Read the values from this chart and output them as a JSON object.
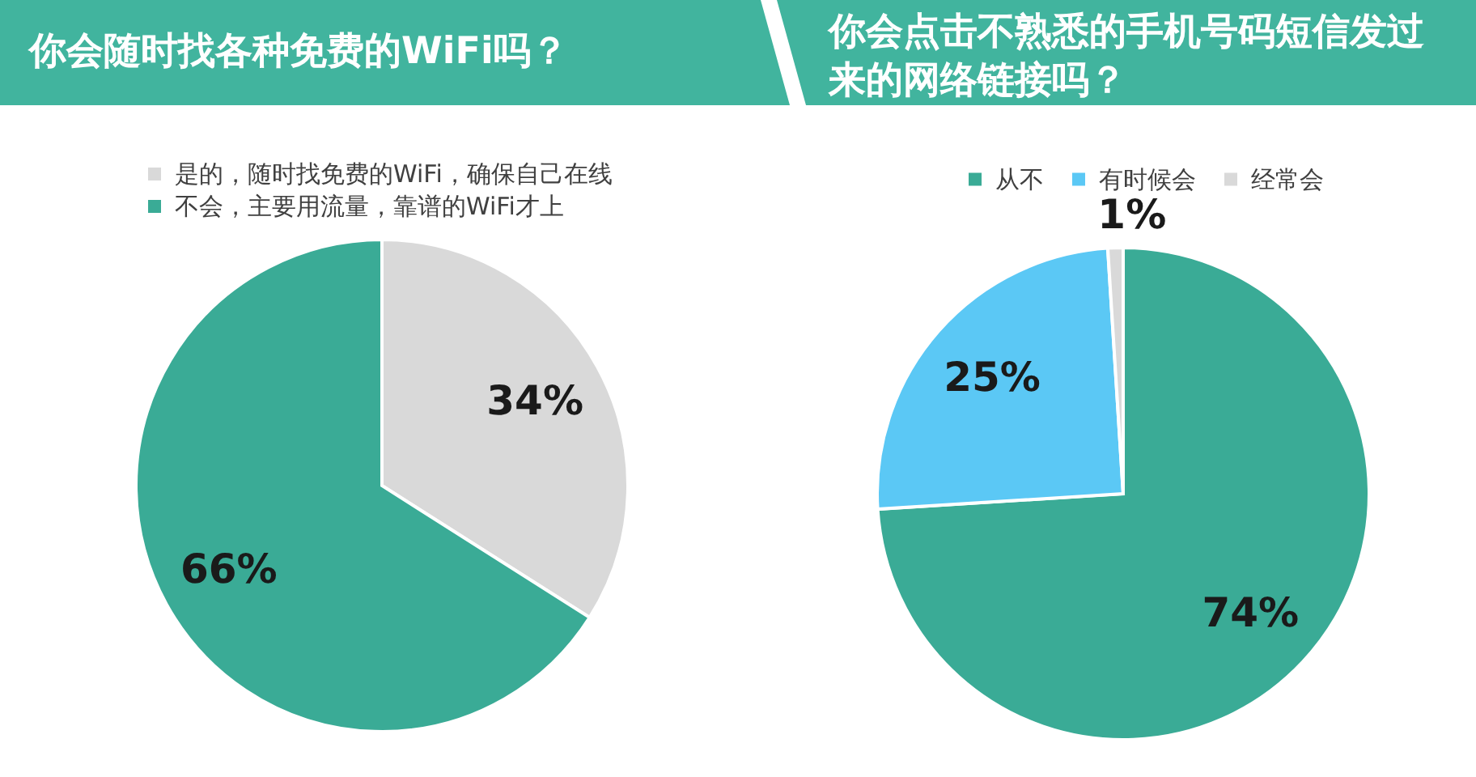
{
  "chart_data": [
    {
      "type": "pie",
      "title": "你会随时找各种免费的WiFi吗？",
      "categories": [
        "是的，随时找免费的WiFi，确保自己在线",
        "不会，主要用流量，靠谱的WiFi才上"
      ],
      "values": [
        34,
        66
      ],
      "colors": [
        "#d9d9d9",
        "#3aab96"
      ],
      "value_labels": [
        "34%",
        "66%"
      ],
      "legend": "top"
    },
    {
      "type": "pie",
      "title": "你会点击不熟悉的手机号码短信发过来的网络链接吗？",
      "categories": [
        "从不",
        "有时候会",
        "经常会"
      ],
      "values": [
        74,
        25,
        1
      ],
      "colors": [
        "#3aab96",
        "#5bc8f5",
        "#d9d9d9"
      ],
      "value_labels": [
        "74%",
        "25%",
        "1%"
      ],
      "legend": "top"
    }
  ]
}
